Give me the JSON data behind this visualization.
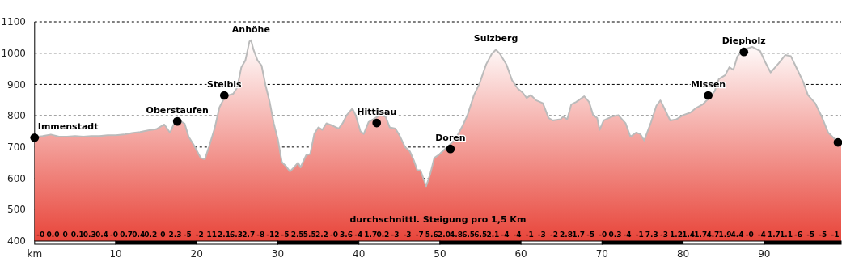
{
  "chart_data": {
    "type": "area",
    "xlim": [
      0,
      99.5
    ],
    "ylim": [
      400,
      1100
    ],
    "xticks": [
      {
        "value": 0,
        "label": "km"
      },
      10,
      20,
      30,
      40,
      50,
      60,
      70,
      80,
      90
    ],
    "yticks": [
      400,
      500,
      600,
      700,
      800,
      900,
      1000,
      1100
    ],
    "grid": "y",
    "line_style": "dashed",
    "series": [
      {
        "color": "#e8453a",
        "x": [
          0,
          1,
          2,
          3,
          4,
          5,
          6,
          7,
          8,
          9,
          10,
          11,
          12,
          13,
          14,
          15,
          16,
          16.7,
          17.2,
          17.8,
          18.5,
          19,
          19.6,
          20.5,
          21,
          21.5,
          22.2,
          22.8,
          23.5,
          24.5,
          25,
          25.5,
          26,
          26.5,
          26.7,
          27,
          27.5,
          28,
          28.5,
          29,
          29.5,
          30,
          30.5,
          31,
          31.5,
          32,
          32.5,
          32.8,
          33.5,
          34,
          34.5,
          35,
          35.5,
          36,
          36.8,
          37.5,
          38,
          38.5,
          39.2,
          39.6,
          40.2,
          40.6,
          41.2,
          41.8,
          42.6,
          43.3,
          43.8,
          44.5,
          45,
          45.7,
          46.3,
          46.8,
          47.2,
          47.6,
          48.3,
          48.8,
          49.3,
          49.8,
          50.9,
          51.9,
          52.8,
          53.4,
          54.2,
          54.9,
          55.7,
          56.4,
          56.9,
          57.4,
          58.2,
          58.9,
          59.6,
          60.2,
          60.7,
          61.2,
          61.9,
          62.7,
          63.4,
          63.9,
          64.9,
          65.2,
          65.7,
          66.2,
          66.8,
          67.8,
          68.4,
          68.9,
          69.4,
          69.7,
          70.2,
          71.2,
          72,
          72.9,
          73.5,
          74.2,
          74.7,
          75.2,
          76,
          76.7,
          77.2,
          77.7,
          78.4,
          79.2,
          80,
          80.9,
          81.5,
          82.4,
          83.4,
          83.9,
          84.4,
          85.2,
          85.7,
          86.2,
          86.7,
          87.5,
          88.5,
          89.5,
          90.1,
          90.8,
          91.8,
          92.6,
          93.3,
          94.1,
          94.8,
          95.4,
          96.3,
          97.1,
          97.9,
          98.9,
          99.5
        ],
        "values": [
          731,
          735,
          740,
          733,
          733,
          735,
          733,
          735,
          735,
          738,
          738,
          740,
          745,
          748,
          753,
          757,
          772,
          746,
          775,
          785,
          775,
          733,
          708,
          665,
          661,
          700,
          759,
          827,
          862,
          870,
          891,
          955,
          977,
          1037,
          1041,
          1011,
          977,
          960,
          896,
          844,
          776,
          725,
          652,
          639,
          622,
          635,
          650,
          635,
          674,
          678,
          742,
          763,
          755,
          776,
          768,
          759,
          776,
          802,
          823,
          802,
          750,
          742,
          780,
          789,
          802,
          797,
          763,
          759,
          738,
          700,
          686,
          656,
          626,
          626,
          575,
          614,
          665,
          674,
          700,
          725,
          768,
          802,
          866,
          904,
          964,
          998,
          1011,
          998,
          964,
          913,
          887,
          874,
          857,
          866,
          849,
          840,
          793,
          785,
          789,
          797,
          789,
          836,
          844,
          862,
          844,
          802,
          793,
          755,
          785,
          797,
          802,
          776,
          733,
          746,
          742,
          721,
          776,
          832,
          849,
          823,
          785,
          789,
          802,
          810,
          823,
          836,
          862,
          879,
          917,
          930,
          955,
          947,
          990,
          1011,
          1020,
          1007,
          973,
          938,
          968,
          994,
          990,
          947,
          909,
          866,
          840,
          797,
          746,
          721,
          715
        ]
      },
      {
        "type": "scatter",
        "color": "#000000",
        "marker": "circle",
        "x": [
          0,
          17.6,
          23.4,
          42.2,
          51.3,
          83.1,
          87.5,
          99.1
        ],
        "values": [
          730,
          782,
          865,
          777,
          694,
          865,
          1004,
          715
        ]
      }
    ],
    "annotations": [
      {
        "text": "Immenstadt",
        "x": 0,
        "y": 730
      },
      {
        "text": "Oberstaufen",
        "x": 17.6,
        "y": 782
      },
      {
        "text": "Steibis",
        "x": 23.4,
        "y": 865
      },
      {
        "text": "Anhöhe",
        "x": 26.7,
        "y": 1041
      },
      {
        "text": "Hittisau",
        "x": 42.2,
        "y": 777
      },
      {
        "text": "Doren",
        "x": 51.3,
        "y": 694
      },
      {
        "text": "Sulzberg",
        "x": 56.9,
        "y": 1011
      },
      {
        "text": "Missen",
        "x": 83.1,
        "y": 865
      },
      {
        "text": "Diepholz",
        "x": 87.5,
        "y": 1004
      },
      "durchschnittl. Steigung pro 1,5 Km",
      "-0",
      "0.0",
      "0",
      "0.1",
      "0.3",
      "0.4",
      "-0",
      "0.7",
      "0.4",
      "0.2",
      "0",
      "2.3",
      "-5",
      "-2",
      "11",
      "2.1",
      "6.3",
      "2.7",
      "-8",
      "-12",
      "-5",
      "2.5",
      "5.5",
      "2.2",
      "-0",
      "3.6",
      "-4",
      "1.7",
      "0.2",
      "-3",
      "-3",
      "-7",
      "5.6",
      "2.0",
      "4.8",
      "6.5",
      "6.5",
      "2.1",
      "-4",
      "-4",
      "-1",
      "-3",
      "-2",
      "2.8",
      "1.7",
      "-5",
      "-0",
      "0.3",
      "-4",
      "-1",
      "7.3",
      "-3",
      "1.2",
      "1.4",
      "1.7",
      "4.7",
      "1.9",
      "4.4",
      "-0",
      "-4",
      "1.7",
      "1.1",
      "-6",
      "-5",
      "-5",
      "-1"
    ]
  }
}
